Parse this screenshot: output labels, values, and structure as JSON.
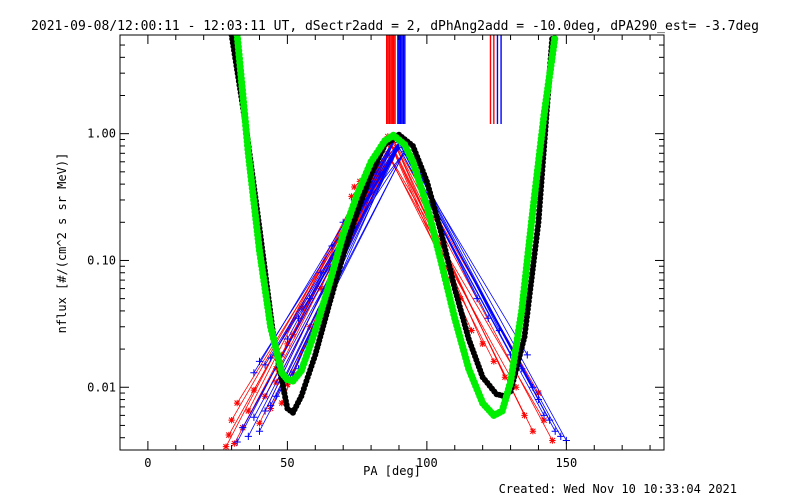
{
  "chart_data": {
    "type": "scatter",
    "title": "2021-09-08/12:00:11 - 12:03:11 UT, dSectr2add = 2, dPhAng2add = -10.0deg, dPA290_est= -3.7deg",
    "xlabel": "PA [deg]",
    "ylabel": "nflux [#/(cm^2 s sr MeV)]",
    "xlim": [
      -10,
      185
    ],
    "ylim": [
      0.0032,
      6.0
    ],
    "yscale": "log",
    "x_tick_labels": [
      "0",
      "50",
      "100",
      "150"
    ],
    "y_tick_labels": [
      "0.01",
      "0.10",
      "1.00"
    ],
    "grid": false,
    "footer": "Created: Wed Nov 10 10:33:04 2021",
    "colors": {
      "red": "#ff0000",
      "blue": "#0000ff",
      "black": "#000000",
      "green": "#00ee00"
    },
    "series": [
      {
        "color": "red",
        "style": "lines+asterisk",
        "x_low": [
          28,
          29,
          30,
          31,
          32,
          34,
          36,
          38,
          40,
          42,
          44,
          46,
          48,
          50,
          52
        ],
        "y_low": [
          0.0034,
          0.0042,
          0.0055,
          0.0036,
          0.0075,
          0.0048,
          0.0065,
          0.0095,
          0.0052,
          0.0085,
          0.0068,
          0.011,
          0.0075,
          0.0105,
          0.013
        ],
        "x_mid": [
          46,
          48,
          50,
          52,
          55,
          58,
          62,
          66,
          70,
          73,
          74,
          75,
          76,
          72,
          68
        ],
        "y_mid": [
          0.014,
          0.018,
          0.022,
          0.026,
          0.042,
          0.03,
          0.06,
          0.09,
          0.14,
          0.32,
          0.38,
          0.26,
          0.42,
          0.2,
          0.11
        ],
        "x_peak": [
          86,
          87,
          88,
          86,
          89,
          87
        ],
        "y_peak": [
          0.95,
          0.82,
          0.88,
          0.7,
          0.78,
          0.62
        ],
        "x_right": [
          112,
          116,
          120,
          124,
          128,
          132,
          135,
          138,
          140,
          142,
          145
        ],
        "y_right": [
          0.05,
          0.028,
          0.022,
          0.016,
          0.012,
          0.01,
          0.006,
          0.0045,
          0.009,
          0.0055,
          0.0038
        ]
      },
      {
        "color": "blue",
        "style": "lines+plus",
        "x_low": [
          32,
          34,
          36,
          38,
          40,
          42,
          44,
          46,
          48,
          50,
          52,
          54
        ],
        "y_low": [
          0.0037,
          0.0048,
          0.0041,
          0.0058,
          0.0045,
          0.0065,
          0.0072,
          0.0085,
          0.0095,
          0.011,
          0.0125,
          0.014
        ],
        "x_mid": [
          38,
          40,
          42,
          44,
          46,
          50,
          54,
          58,
          62,
          66,
          70,
          74
        ],
        "y_mid": [
          0.013,
          0.016,
          0.015,
          0.017,
          0.02,
          0.024,
          0.035,
          0.05,
          0.08,
          0.13,
          0.2,
          0.3
        ],
        "x_peak": [
          89,
          90,
          91,
          90,
          92
        ],
        "y_peak": [
          0.95,
          0.85,
          0.9,
          0.78,
          0.72
        ],
        "x_right": [
          118,
          122,
          126,
          130,
          134,
          136,
          138,
          140,
          142,
          144,
          146,
          148,
          150
        ],
        "y_right": [
          0.05,
          0.035,
          0.028,
          0.018,
          0.014,
          0.018,
          0.01,
          0.008,
          0.006,
          0.0055,
          0.0045,
          0.0041,
          0.0038
        ]
      },
      {
        "color": "black",
        "style": "thick-dots",
        "model": "fit",
        "x": [
          30,
          35,
          40,
          45,
          50,
          52,
          55,
          60,
          65,
          70,
          75,
          80,
          85,
          90,
          95,
          100,
          105,
          110,
          115,
          120,
          125,
          128,
          130,
          135,
          140,
          145
        ],
        "y": [
          6.0,
          1.2,
          0.18,
          0.025,
          0.0068,
          0.0063,
          0.0085,
          0.018,
          0.045,
          0.11,
          0.24,
          0.48,
          0.82,
          0.98,
          0.8,
          0.42,
          0.17,
          0.06,
          0.024,
          0.012,
          0.0088,
          0.0085,
          0.0093,
          0.025,
          0.2,
          6.0
        ]
      },
      {
        "color": "green",
        "style": "thick-dots",
        "model": "fit",
        "x": [
          32,
          36,
          40,
          44,
          48,
          50,
          52,
          55,
          60,
          65,
          70,
          75,
          80,
          85,
          88,
          92,
          95,
          100,
          105,
          110,
          115,
          120,
          124,
          127,
          130,
          134,
          138,
          142,
          146
        ],
        "y": [
          6.0,
          0.7,
          0.12,
          0.03,
          0.013,
          0.0115,
          0.0112,
          0.0135,
          0.028,
          0.065,
          0.16,
          0.33,
          0.6,
          0.88,
          0.97,
          0.82,
          0.6,
          0.27,
          0.1,
          0.035,
          0.014,
          0.0075,
          0.006,
          0.0065,
          0.011,
          0.04,
          0.25,
          1.4,
          6.0
        ]
      }
    ],
    "markers_top": [
      {
        "color": "red",
        "x": [
          85.6,
          86.1,
          86.6,
          87.1,
          87.6,
          88.1,
          88.6
        ],
        "length": "long"
      },
      {
        "color": "blue",
        "x": [
          89.6,
          90.1,
          90.6,
          91.1,
          91.6,
          92.1
        ],
        "length": "long"
      },
      {
        "color": "red",
        "x": [
          122.8,
          124.0
        ],
        "length": "long"
      },
      {
        "color": "blue",
        "x": [
          125.3,
          126.6
        ],
        "length": "long"
      }
    ]
  }
}
